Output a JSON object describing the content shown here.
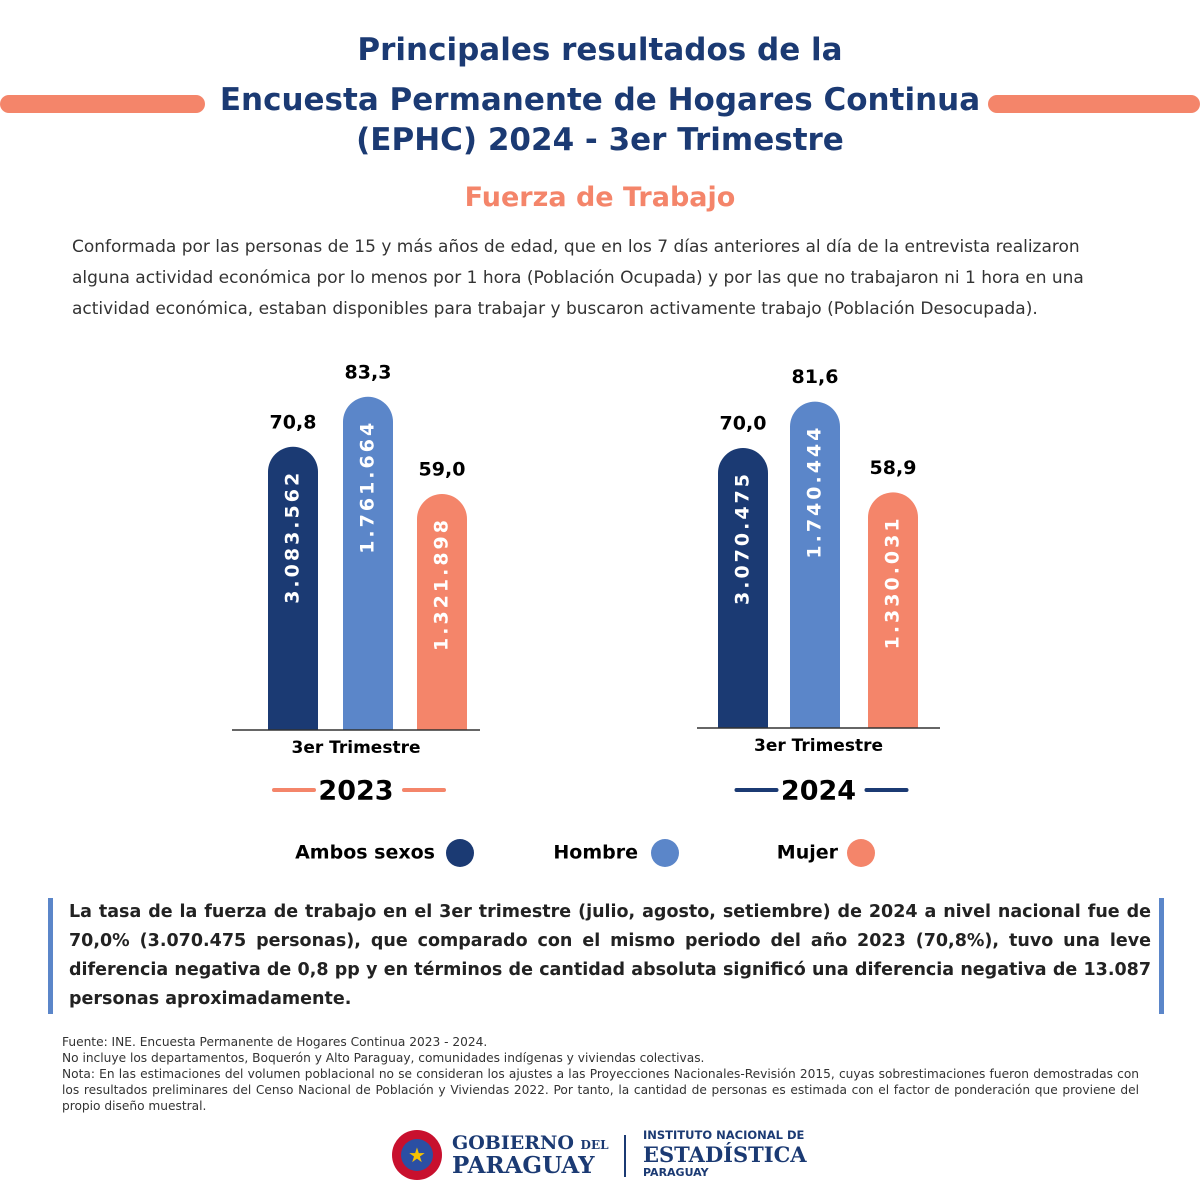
{
  "header": {
    "title_lines": [
      "Principales resultados de la",
      "Encuesta Permanente de Hogares Continua",
      "(EPHC) 2024 - 3er Trimestre"
    ],
    "section": "Fuerza de Trabajo",
    "description": "Conformada por las personas de 15 y más años de edad, que en los 7 días anteriores al día de la entrevista realizaron alguna actividad económica por lo menos por 1 hora (Población Ocupada) y por las que no trabajaron ni 1 hora en una actividad económica, estaban disponibles para trabajar y buscaron activamente trabajo (Población Desocupada)."
  },
  "chart_data": [
    {
      "type": "bar",
      "subtitle": "2023",
      "categories": [
        "3er Trimestre"
      ],
      "accent": "#f4856a",
      "series": [
        {
          "color": "#1b3a73",
          "values": [
            70.8
          ],
          "value_labels": [
            "70,8"
          ],
          "count_labels": [
            "3.083.562"
          ]
        },
        {
          "color": "#5b86c9",
          "values": [
            83.3
          ],
          "value_labels": [
            "83,3"
          ],
          "count_labels": [
            "1.761.664"
          ]
        },
        {
          "color": "#f4856a",
          "values": [
            59.0
          ],
          "value_labels": [
            "59,0"
          ],
          "count_labels": [
            "1.321.898"
          ]
        }
      ]
    },
    {
      "type": "bar",
      "subtitle": "2024",
      "categories": [
        "3er Trimestre"
      ],
      "accent": "#1b3a73",
      "series": [
        {
          "color": "#1b3a73",
          "values": [
            70.0
          ],
          "value_labels": [
            "70,0"
          ],
          "count_labels": [
            "3.070.475"
          ]
        },
        {
          "color": "#5b86c9",
          "values": [
            81.6
          ],
          "value_labels": [
            "81,6"
          ],
          "count_labels": [
            "1.740.444"
          ]
        },
        {
          "color": "#f4856a",
          "values": [
            58.9
          ],
          "value_labels": [
            "58,9"
          ],
          "count_labels": [
            "1.330.031"
          ]
        }
      ]
    }
  ],
  "legend": {
    "items": [
      {
        "name": "Ambos sexos",
        "color": "#1b3a73"
      },
      {
        "name": "Hombre",
        "color": "#5b86c9"
      },
      {
        "name": "Mujer",
        "color": "#f4856a"
      }
    ]
  },
  "summary": "La tasa de la fuerza de trabajo en el 3er trimestre (julio, agosto, setiembre) de 2024 a nivel nacional fue de 70,0% (3.070.475 personas), que comparado con el mismo periodo del año 2023 (70,8%), tuvo una leve diferencia negativa de 0,8 pp y en términos de cantidad absoluta significó una diferencia negativa de 13.087 personas aproximadamente.",
  "footnotes": [
    "Fuente: INE. Encuesta Permanente de Hogares Continua 2023 - 2024.",
    "No incluye los departamentos, Boquerón y Alto Paraguay, comunidades indígenas y viviendas colectivas.",
    "Nota: En las estimaciones del volumen poblacional no se consideran los ajustes a las Proyecciones Nacionales-Revisión 2015, cuyas sobrestimaciones fueron demostradas con los resultados preliminares del Censo Nacional de Población y Viviendas 2022. Por tanto, la cantidad de personas es estimada con el factor de ponderación que proviene del propio diseño muestral."
  ],
  "logos": {
    "gov": [
      "GOBIERNO",
      "DEL",
      "PARAGUAY"
    ],
    "ine": [
      "INSTITUTO NACIONAL DE",
      "ESTADÍSTICA",
      "PARAGUAY"
    ]
  }
}
